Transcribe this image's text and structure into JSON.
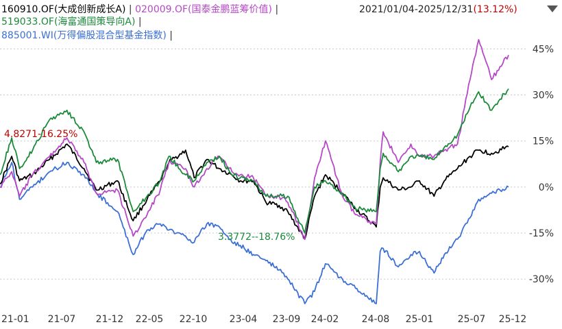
{
  "legend": {
    "items": [
      {
        "label": "160910.OF(大成创新成长A)",
        "color": "#000000"
      },
      {
        "label": "020009.OF(国泰金鹏蓝筹价值)",
        "color": "#b548c6"
      },
      {
        "label": "519033.OF(海富通国策导向A)",
        "color": "#1a8a3a"
      },
      {
        "label": "885001.WI(万得偏股混合型基金指数)",
        "color": "#3b6fd6"
      }
    ],
    "separator": "|"
  },
  "range": {
    "text": "2021/01/04-2025/12/31",
    "open": "(",
    "pct": "13.12%",
    "close": ")"
  },
  "annotations": {
    "max_label": "4.8271-16.25%",
    "min_label": "3.3772--18.76%"
  },
  "chart_data": {
    "type": "line",
    "x_ticks": [
      "21-01",
      "21-07",
      "21-12",
      "22-05",
      "22-10",
      "23-04",
      "23-09",
      "24-02",
      "24-08",
      "25-01",
      "25-07",
      "25-12"
    ],
    "ylim": [
      -40,
      52
    ],
    "y_ticks": [
      {
        "value": 45,
        "label": "45%"
      },
      {
        "value": 30,
        "label": "30%"
      },
      {
        "value": 15,
        "label": "15%"
      },
      {
        "value": 0,
        "label": "0%"
      },
      {
        "value": -15,
        "label": "-15%"
      },
      {
        "value": -30,
        "label": "-30%"
      }
    ],
    "series": [
      {
        "name": "160910.OF(大成创新成长A)",
        "color": "#000000",
        "x": [
          "2021-01-04",
          "2021-02-15",
          "2021-03-15",
          "2021-05-01",
          "2021-07-01",
          "2021-09-01",
          "2021-11-01",
          "2021-12-15",
          "2022-03-01",
          "2022-04-26",
          "2022-06-15",
          "2022-08-01",
          "2022-09-01",
          "2022-10-31",
          "2022-12-01",
          "2023-01-15",
          "2023-03-01",
          "2023-04-15",
          "2023-05-15",
          "2023-07-01",
          "2023-08-15",
          "2023-10-01",
          "2023-11-01",
          "2024-01-01",
          "2024-02-05",
          "2024-03-15",
          "2024-05-15",
          "2024-07-01",
          "2024-09-13",
          "2024-09-27",
          "2024-10-08",
          "2024-12-01",
          "2025-01-15",
          "2025-02-15",
          "2025-04-08",
          "2025-05-15",
          "2025-07-01",
          "2025-08-15",
          "2025-09-15",
          "2025-10-31",
          "2025-12-31"
        ],
        "values": [
          1,
          10,
          2,
          4,
          9,
          14,
          6,
          -1,
          2,
          -11,
          -4,
          2,
          8,
          12,
          3,
          9,
          6,
          4,
          2,
          2,
          -5,
          -6,
          -8,
          -17,
          -3,
          4,
          -2,
          -7,
          -13,
          0,
          3,
          -1,
          0,
          2,
          -3,
          2,
          6,
          10,
          12,
          11,
          13.12
        ]
      },
      {
        "name": "020009.OF(国泰金鹏蓝筹价值)",
        "color": "#b548c6",
        "x": [
          "2021-01-04",
          "2021-02-15",
          "2021-03-15",
          "2021-05-01",
          "2021-07-01",
          "2021-09-01",
          "2021-11-01",
          "2021-12-15",
          "2022-03-01",
          "2022-04-26",
          "2022-06-15",
          "2022-08-01",
          "2022-09-01",
          "2022-10-31",
          "2022-12-01",
          "2023-01-15",
          "2023-03-01",
          "2023-04-15",
          "2023-05-15",
          "2023-07-01",
          "2023-08-15",
          "2023-10-01",
          "2023-11-01",
          "2024-01-01",
          "2024-02-05",
          "2024-03-15",
          "2024-05-15",
          "2024-07-01",
          "2024-09-13",
          "2024-09-27",
          "2024-10-08",
          "2024-12-01",
          "2025-01-15",
          "2025-02-15",
          "2025-04-08",
          "2025-05-15",
          "2025-07-01",
          "2025-08-15",
          "2025-09-15",
          "2025-10-31",
          "2025-12-31"
        ],
        "values": [
          0,
          5,
          -3,
          4,
          10,
          16,
          8,
          -2,
          -1,
          -16,
          -9,
          -1,
          8,
          6,
          0,
          6,
          10,
          5,
          4,
          3,
          -3,
          -3,
          -5,
          -17,
          3,
          15,
          -3,
          -9,
          -12,
          8,
          18,
          8,
          14,
          10,
          10,
          12,
          14,
          35,
          48,
          35,
          43
        ]
      },
      {
        "name": "519033.OF(海富通国策导向A)",
        "color": "#1a8a3a",
        "x": [
          "2021-01-04",
          "2021-02-15",
          "2021-03-15",
          "2021-05-01",
          "2021-07-01",
          "2021-09-01",
          "2021-11-01",
          "2021-12-15",
          "2022-03-01",
          "2022-04-26",
          "2022-06-15",
          "2022-08-01",
          "2022-09-01",
          "2022-10-31",
          "2022-12-01",
          "2023-01-15",
          "2023-03-01",
          "2023-04-15",
          "2023-05-15",
          "2023-07-01",
          "2023-08-15",
          "2023-10-01",
          "2023-11-01",
          "2024-01-01",
          "2024-02-05",
          "2024-03-15",
          "2024-05-15",
          "2024-07-01",
          "2024-09-13",
          "2024-09-27",
          "2024-10-08",
          "2024-12-01",
          "2025-01-15",
          "2025-02-15",
          "2025-04-08",
          "2025-05-15",
          "2025-07-01",
          "2025-08-15",
          "2025-09-15",
          "2025-10-31",
          "2025-12-31"
        ],
        "values": [
          4,
          16,
          6,
          12,
          22,
          25,
          18,
          8,
          9,
          -8,
          -3,
          2,
          10,
          4,
          2,
          8,
          10,
          4,
          3,
          2,
          -3,
          -3,
          -3,
          -15,
          0,
          2,
          -2,
          -7,
          -8,
          6,
          11,
          5,
          10,
          10,
          9,
          13,
          17,
          26,
          31,
          25,
          32
        ]
      },
      {
        "name": "885001.WI(万得偏股混合型基金指数)",
        "color": "#3b6fd6",
        "x": [
          "2021-01-04",
          "2021-02-15",
          "2021-03-15",
          "2021-05-01",
          "2021-07-01",
          "2021-09-01",
          "2021-11-01",
          "2021-12-15",
          "2022-03-01",
          "2022-04-26",
          "2022-06-15",
          "2022-08-01",
          "2022-09-01",
          "2022-10-31",
          "2022-12-01",
          "2023-01-15",
          "2023-03-01",
          "2023-04-15",
          "2023-05-15",
          "2023-07-01",
          "2023-08-15",
          "2023-10-01",
          "2023-11-01",
          "2024-01-01",
          "2024-02-05",
          "2024-03-15",
          "2024-05-15",
          "2024-07-01",
          "2024-09-13",
          "2024-09-27",
          "2024-10-08",
          "2024-12-01",
          "2025-01-15",
          "2025-02-15",
          "2025-04-08",
          "2025-05-15",
          "2025-07-01",
          "2025-08-15",
          "2025-09-15",
          "2025-10-31",
          "2025-12-31"
        ],
        "values": [
          0,
          8,
          -4,
          0,
          5,
          8,
          4,
          -2,
          -8,
          -22,
          -14,
          -12,
          -14,
          -16,
          -18,
          -12,
          -13,
          -18,
          -19,
          -22,
          -24,
          -27,
          -30,
          -38,
          -34,
          -25,
          -30,
          -33,
          -38,
          -21,
          -20,
          -26,
          -22,
          -21,
          -28,
          -22,
          -17,
          -10,
          -4,
          -2,
          0
        ]
      }
    ]
  }
}
